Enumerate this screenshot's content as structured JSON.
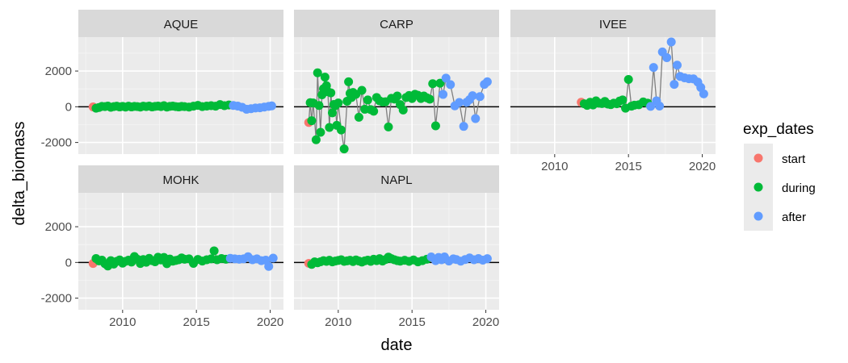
{
  "chart_data": {
    "type": "scatter",
    "facet_by": "site",
    "xlabel": "date",
    "ylabel": "delta_biomass",
    "xlim": [
      2007.0,
      2020.9
    ],
    "ylim": [
      -2650,
      3900
    ],
    "x_ticks": [
      2010,
      2015,
      2020
    ],
    "y_ticks": [
      -2000,
      0,
      2000
    ],
    "grid": true,
    "hline": 0,
    "connect_points": true,
    "legend": {
      "title": "exp_dates",
      "position": "right",
      "entries": [
        {
          "key": "start",
          "label": "start",
          "color": "#F8766D"
        },
        {
          "key": "during",
          "label": "during",
          "color": "#00BA38"
        },
        {
          "key": "after",
          "label": "after",
          "color": "#619CFF"
        }
      ]
    },
    "panels": [
      {
        "site": "AQUE",
        "start": [
          [
            2008.0,
            -10
          ]
        ],
        "during": [
          [
            2008.2,
            -80
          ],
          [
            2008.4,
            -40
          ],
          [
            2008.6,
            20
          ],
          [
            2008.8,
            10
          ],
          [
            2009.0,
            40
          ],
          [
            2009.2,
            -30
          ],
          [
            2009.4,
            10
          ],
          [
            2009.6,
            30
          ],
          [
            2009.8,
            -10
          ],
          [
            2010.0,
            20
          ],
          [
            2010.2,
            -20
          ],
          [
            2010.4,
            30
          ],
          [
            2010.6,
            -10
          ],
          [
            2010.8,
            20
          ],
          [
            2011.0,
            10
          ],
          [
            2011.2,
            -20
          ],
          [
            2011.4,
            30
          ],
          [
            2011.6,
            10
          ],
          [
            2011.8,
            40
          ],
          [
            2012.0,
            -10
          ],
          [
            2012.2,
            20
          ],
          [
            2012.4,
            40
          ],
          [
            2012.6,
            10
          ],
          [
            2012.8,
            60
          ],
          [
            2013.0,
            -20
          ],
          [
            2013.2,
            20
          ],
          [
            2013.4,
            40
          ],
          [
            2013.6,
            10
          ],
          [
            2013.8,
            -10
          ],
          [
            2014.0,
            20
          ],
          [
            2014.2,
            10
          ],
          [
            2014.5,
            -20
          ],
          [
            2014.8,
            30
          ],
          [
            2015.1,
            80
          ],
          [
            2015.4,
            10
          ],
          [
            2015.7,
            40
          ],
          [
            2016.0,
            60
          ],
          [
            2016.3,
            30
          ],
          [
            2016.6,
            120
          ],
          [
            2016.9,
            60
          ],
          [
            2017.2,
            100
          ]
        ],
        "after": [
          [
            2017.5,
            70
          ],
          [
            2017.8,
            40
          ],
          [
            2018.1,
            -30
          ],
          [
            2018.4,
            -140
          ],
          [
            2018.7,
            -110
          ],
          [
            2019.0,
            -70
          ],
          [
            2019.3,
            -60
          ],
          [
            2019.6,
            -20
          ],
          [
            2019.9,
            20
          ],
          [
            2020.1,
            50
          ]
        ]
      },
      {
        "site": "CARP",
        "start": [
          [
            2008.0,
            -880
          ]
        ],
        "during": [
          [
            2008.1,
            230
          ],
          [
            2008.2,
            -780
          ],
          [
            2008.3,
            210
          ],
          [
            2008.5,
            -1850
          ],
          [
            2008.6,
            1900
          ],
          [
            2008.7,
            70
          ],
          [
            2008.8,
            -1430
          ],
          [
            2008.9,
            670
          ],
          [
            2009.0,
            1010
          ],
          [
            2009.1,
            1660
          ],
          [
            2009.2,
            1180
          ],
          [
            2009.3,
            840
          ],
          [
            2009.4,
            -1160
          ],
          [
            2009.5,
            780
          ],
          [
            2009.6,
            -340
          ],
          [
            2009.7,
            130
          ],
          [
            2009.8,
            60
          ],
          [
            2009.9,
            -1040
          ],
          [
            2010.0,
            210
          ],
          [
            2010.2,
            -1300
          ],
          [
            2010.4,
            -2360
          ],
          [
            2010.6,
            310
          ],
          [
            2010.7,
            1400
          ],
          [
            2010.8,
            750
          ],
          [
            2010.9,
            520
          ],
          [
            2011.0,
            800
          ],
          [
            2011.2,
            700
          ],
          [
            2011.4,
            -590
          ],
          [
            2011.6,
            920
          ],
          [
            2011.8,
            -140
          ],
          [
            2012.0,
            380
          ],
          [
            2012.2,
            -160
          ],
          [
            2012.4,
            -250
          ],
          [
            2012.6,
            520
          ],
          [
            2012.8,
            330
          ],
          [
            2013.0,
            270
          ],
          [
            2013.2,
            280
          ],
          [
            2013.4,
            -1130
          ],
          [
            2013.6,
            470
          ],
          [
            2013.8,
            430
          ],
          [
            2014.0,
            600
          ],
          [
            2014.2,
            120
          ],
          [
            2014.4,
            -180
          ],
          [
            2014.6,
            520
          ],
          [
            2014.8,
            630
          ],
          [
            2015.0,
            460
          ],
          [
            2015.2,
            700
          ],
          [
            2015.4,
            640
          ],
          [
            2015.6,
            460
          ],
          [
            2015.8,
            600
          ],
          [
            2016.0,
            500
          ],
          [
            2016.2,
            420
          ],
          [
            2016.4,
            1290
          ],
          [
            2016.6,
            -1070
          ],
          [
            2016.9,
            1320
          ]
        ],
        "after": [
          [
            2017.1,
            690
          ],
          [
            2017.3,
            1600
          ],
          [
            2017.6,
            1240
          ],
          [
            2017.9,
            50
          ],
          [
            2018.2,
            240
          ],
          [
            2018.5,
            -1100
          ],
          [
            2018.7,
            250
          ],
          [
            2018.9,
            400
          ],
          [
            2019.1,
            620
          ],
          [
            2019.3,
            -660
          ],
          [
            2019.6,
            570
          ],
          [
            2019.9,
            1250
          ],
          [
            2020.1,
            1400
          ]
        ]
      },
      {
        "site": "IVEE",
        "start": [
          [
            2011.8,
            250
          ]
        ],
        "during": [
          [
            2012.0,
            170
          ],
          [
            2012.2,
            80
          ],
          [
            2012.4,
            250
          ],
          [
            2012.6,
            100
          ],
          [
            2012.8,
            330
          ],
          [
            2013.0,
            200
          ],
          [
            2013.2,
            180
          ],
          [
            2013.4,
            300
          ],
          [
            2013.6,
            150
          ],
          [
            2013.8,
            120
          ],
          [
            2014.0,
            200
          ],
          [
            2014.2,
            170
          ],
          [
            2014.4,
            320
          ],
          [
            2014.6,
            380
          ],
          [
            2014.8,
            -80
          ],
          [
            2015.0,
            1530
          ],
          [
            2015.2,
            30
          ],
          [
            2015.4,
            90
          ],
          [
            2015.7,
            110
          ],
          [
            2016.0,
            270
          ],
          [
            2016.3,
            200
          ]
        ],
        "after": [
          [
            2016.5,
            20
          ],
          [
            2016.7,
            2200
          ],
          [
            2016.9,
            330
          ],
          [
            2017.1,
            40
          ],
          [
            2017.3,
            3070
          ],
          [
            2017.6,
            2750
          ],
          [
            2017.9,
            3630
          ],
          [
            2018.1,
            1250
          ],
          [
            2018.3,
            2330
          ],
          [
            2018.5,
            1700
          ],
          [
            2018.8,
            1620
          ],
          [
            2019.1,
            1570
          ],
          [
            2019.4,
            1560
          ],
          [
            2019.7,
            1380
          ],
          [
            2019.9,
            1080
          ],
          [
            2020.1,
            720
          ]
        ]
      },
      {
        "site": "MOHK",
        "start": [
          [
            2008.0,
            -60
          ]
        ],
        "during": [
          [
            2008.2,
            220
          ],
          [
            2008.4,
            90
          ],
          [
            2008.6,
            130
          ],
          [
            2008.8,
            -70
          ],
          [
            2009.0,
            -200
          ],
          [
            2009.2,
            100
          ],
          [
            2009.4,
            -90
          ],
          [
            2009.6,
            60
          ],
          [
            2009.8,
            140
          ],
          [
            2010.0,
            -40
          ],
          [
            2010.2,
            60
          ],
          [
            2010.4,
            130
          ],
          [
            2010.6,
            20
          ],
          [
            2010.8,
            330
          ],
          [
            2011.0,
            180
          ],
          [
            2011.2,
            -60
          ],
          [
            2011.4,
            160
          ],
          [
            2011.6,
            10
          ],
          [
            2011.8,
            230
          ],
          [
            2012.0,
            100
          ],
          [
            2012.2,
            40
          ],
          [
            2012.4,
            290
          ],
          [
            2012.6,
            140
          ],
          [
            2012.8,
            280
          ],
          [
            2013.0,
            -70
          ],
          [
            2013.2,
            190
          ],
          [
            2013.4,
            70
          ],
          [
            2013.6,
            110
          ],
          [
            2013.8,
            150
          ],
          [
            2014.0,
            250
          ],
          [
            2014.2,
            180
          ],
          [
            2014.5,
            200
          ],
          [
            2014.8,
            -50
          ],
          [
            2015.1,
            170
          ],
          [
            2015.4,
            80
          ],
          [
            2015.7,
            150
          ],
          [
            2016.0,
            200
          ],
          [
            2016.2,
            650
          ],
          [
            2016.4,
            150
          ],
          [
            2016.7,
            220
          ],
          [
            2017.0,
            180
          ]
        ],
        "after": [
          [
            2017.3,
            230
          ],
          [
            2017.6,
            200
          ],
          [
            2017.9,
            180
          ],
          [
            2018.2,
            200
          ],
          [
            2018.5,
            320
          ],
          [
            2018.8,
            150
          ],
          [
            2019.1,
            200
          ],
          [
            2019.4,
            100
          ],
          [
            2019.7,
            130
          ],
          [
            2019.9,
            -220
          ],
          [
            2020.2,
            240
          ]
        ]
      },
      {
        "site": "NAPL",
        "start": [
          [
            2008.0,
            -50
          ]
        ],
        "during": [
          [
            2008.2,
            -110
          ],
          [
            2008.4,
            30
          ],
          [
            2008.6,
            -20
          ],
          [
            2008.8,
            40
          ],
          [
            2009.0,
            100
          ],
          [
            2009.2,
            60
          ],
          [
            2009.4,
            120
          ],
          [
            2009.6,
            30
          ],
          [
            2009.8,
            80
          ],
          [
            2010.0,
            110
          ],
          [
            2010.2,
            150
          ],
          [
            2010.4,
            60
          ],
          [
            2010.6,
            90
          ],
          [
            2010.8,
            120
          ],
          [
            2011.0,
            50
          ],
          [
            2011.2,
            140
          ],
          [
            2011.4,
            80
          ],
          [
            2011.6,
            20
          ],
          [
            2011.8,
            90
          ],
          [
            2012.0,
            130
          ],
          [
            2012.2,
            60
          ],
          [
            2012.4,
            180
          ],
          [
            2012.6,
            100
          ],
          [
            2012.8,
            210
          ],
          [
            2013.0,
            80
          ],
          [
            2013.2,
            160
          ],
          [
            2013.4,
            300
          ],
          [
            2013.6,
            210
          ],
          [
            2013.8,
            150
          ],
          [
            2014.0,
            100
          ],
          [
            2014.2,
            70
          ],
          [
            2014.5,
            120
          ],
          [
            2014.8,
            60
          ],
          [
            2015.1,
            140
          ],
          [
            2015.4,
            30
          ],
          [
            2015.7,
            100
          ],
          [
            2016.0,
            180
          ]
        ],
        "after": [
          [
            2016.3,
            310
          ],
          [
            2016.6,
            100
          ],
          [
            2016.8,
            280
          ],
          [
            2017.0,
            150
          ],
          [
            2017.2,
            310
          ],
          [
            2017.5,
            80
          ],
          [
            2017.8,
            200
          ],
          [
            2018.0,
            160
          ],
          [
            2018.3,
            70
          ],
          [
            2018.6,
            160
          ],
          [
            2018.9,
            250
          ],
          [
            2019.2,
            150
          ],
          [
            2019.5,
            220
          ],
          [
            2019.8,
            130
          ],
          [
            2020.1,
            210
          ]
        ]
      }
    ]
  }
}
